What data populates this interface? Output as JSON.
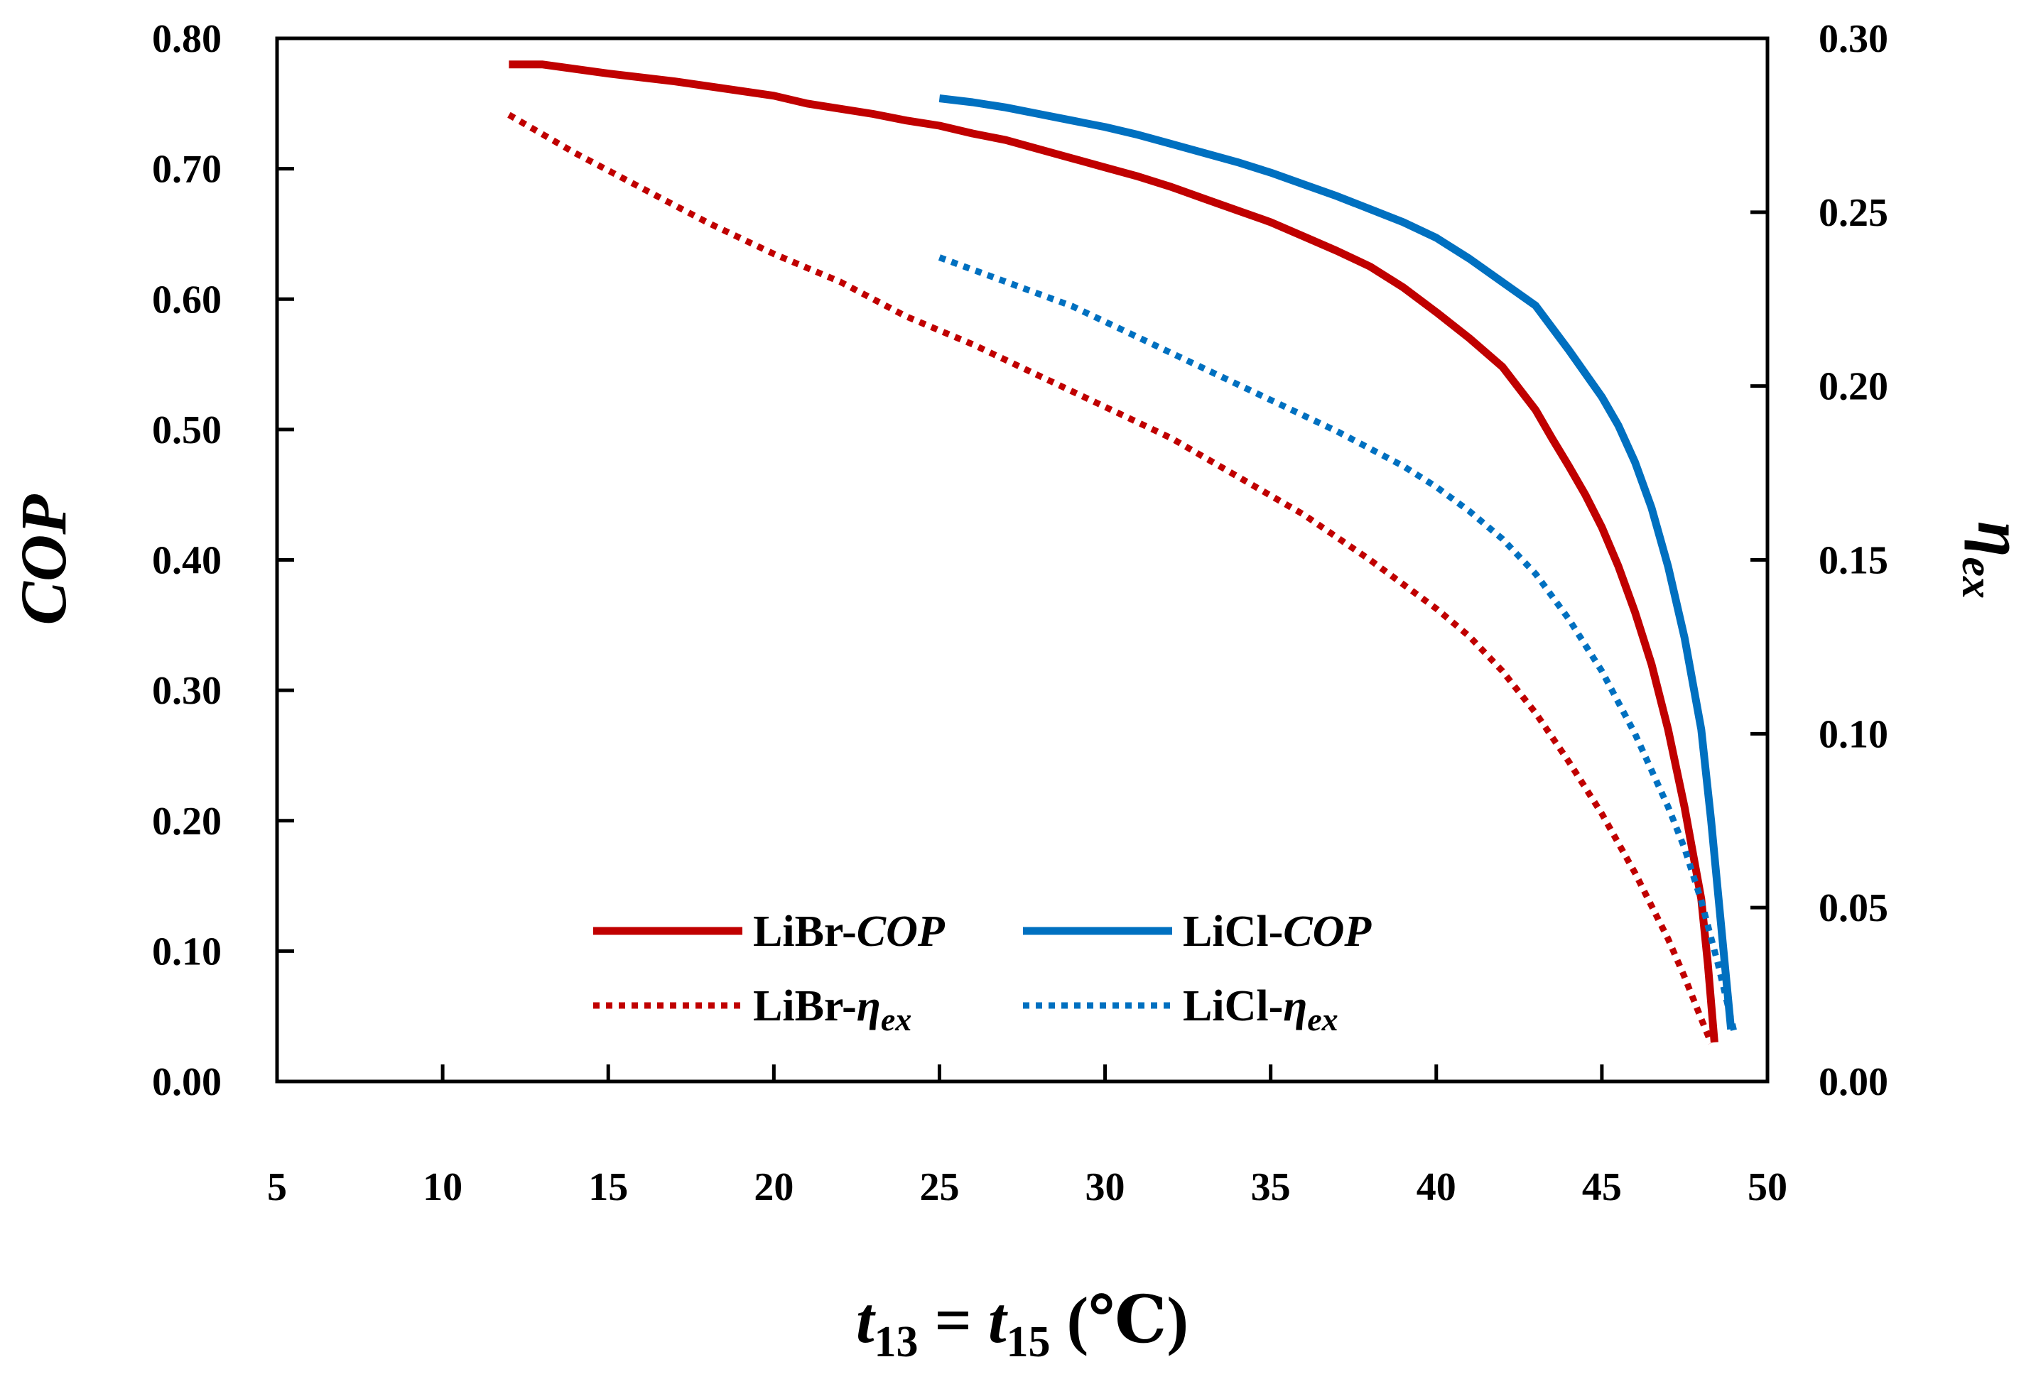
{
  "chart_data": {
    "type": "line",
    "xlabel": "t13 = t15 (℃)",
    "xlabel_parts": {
      "var1": "t",
      "sub1": "13",
      "eq": " = ",
      "var2": "t",
      "sub2": "15",
      "unit": " (℃)"
    },
    "ylabel": "COP",
    "y2label": "ηex",
    "y2label_parts": {
      "symbol": "η",
      "sub": "ex"
    },
    "xlim": [
      5,
      50
    ],
    "ylim": [
      0,
      0.8
    ],
    "y2lim": [
      0,
      0.3
    ],
    "x_ticks": [
      5,
      10,
      15,
      20,
      25,
      30,
      35,
      40,
      45,
      50
    ],
    "x_tick_labels": [
      "5",
      "10",
      "15",
      "20",
      "25",
      "30",
      "35",
      "40",
      "45",
      "50"
    ],
    "y_ticks": [
      0,
      0.1,
      0.2,
      0.3,
      0.4,
      0.5,
      0.6,
      0.7,
      0.8
    ],
    "y_tick_labels": [
      "0.00",
      "0.10",
      "0.20",
      "0.30",
      "0.40",
      "0.50",
      "0.60",
      "0.70",
      "0.80"
    ],
    "y2_ticks": [
      0,
      0.05,
      0.1,
      0.15,
      0.2,
      0.25,
      0.3
    ],
    "y2_tick_labels": [
      "0.00",
      "0.05",
      "0.10",
      "0.15",
      "0.20",
      "0.25",
      "0.30"
    ],
    "grid": false,
    "legend_position": "bottom-center",
    "series": [
      {
        "name": "LiBr-COP",
        "label_main": "LiBr-",
        "label_var": "COP",
        "label_sub": "",
        "axis": "left",
        "style": "solid",
        "color": "#C00000",
        "x": [
          12,
          13,
          15,
          17,
          20,
          21,
          23,
          24,
          25,
          26,
          27,
          28,
          29,
          30,
          31,
          32,
          33,
          34,
          35,
          36,
          37,
          38,
          39,
          40,
          41,
          42,
          43,
          43.5,
          44,
          44.5,
          45,
          45.5,
          46,
          46.5,
          47,
          47.5,
          48,
          48.2,
          48.4
        ],
        "y": [
          0.78,
          0.78,
          0.773,
          0.767,
          0.756,
          0.75,
          0.742,
          0.737,
          0.733,
          0.727,
          0.722,
          0.715,
          0.708,
          0.701,
          0.694,
          0.686,
          0.677,
          0.668,
          0.659,
          0.648,
          0.637,
          0.625,
          0.609,
          0.59,
          0.57,
          0.548,
          0.515,
          0.493,
          0.472,
          0.45,
          0.425,
          0.395,
          0.36,
          0.32,
          0.27,
          0.21,
          0.14,
          0.09,
          0.03
        ]
      },
      {
        "name": "LiCl-COP",
        "label_main": "LiCl-",
        "label_var": "COP",
        "label_sub": "",
        "axis": "left",
        "style": "solid",
        "color": "#0070C0",
        "x": [
          25,
          26,
          27,
          28,
          29,
          30,
          31,
          32,
          33,
          34,
          35,
          36,
          37,
          38,
          39,
          40,
          41,
          42,
          43,
          44,
          45,
          45.5,
          46,
          46.5,
          47,
          47.5,
          48,
          48.3,
          48.6,
          48.9
        ],
        "y": [
          0.754,
          0.751,
          0.747,
          0.742,
          0.737,
          0.732,
          0.726,
          0.719,
          0.712,
          0.705,
          0.697,
          0.688,
          0.679,
          0.669,
          0.659,
          0.647,
          0.631,
          0.613,
          0.595,
          0.561,
          0.525,
          0.503,
          0.475,
          0.44,
          0.395,
          0.34,
          0.27,
          0.2,
          0.12,
          0.04
        ]
      },
      {
        "name": "LiBr-ηex",
        "label_main": "LiBr-",
        "label_var": "η",
        "label_sub": "ex",
        "axis": "right",
        "style": "dotted",
        "color": "#C00000",
        "x": [
          12,
          14,
          16,
          18,
          20,
          22,
          24,
          25,
          26,
          28,
          30,
          32,
          34,
          36,
          38,
          40,
          41,
          42,
          43,
          44,
          45,
          46,
          47,
          47.5,
          48,
          48.3
        ],
        "y": [
          0.278,
          0.267,
          0.257,
          0.247,
          0.238,
          0.23,
          0.22,
          0.216,
          0.212,
          0.203,
          0.194,
          0.185,
          0.174,
          0.163,
          0.15,
          0.136,
          0.128,
          0.118,
          0.106,
          0.092,
          0.077,
          0.06,
          0.041,
          0.03,
          0.018,
          0.011
        ]
      },
      {
        "name": "LiCl-ηex",
        "label_main": "LiCl-",
        "label_var": "η",
        "label_sub": "ex",
        "axis": "right",
        "style": "dotted",
        "color": "#0070C0",
        "x": [
          25,
          27,
          29,
          31,
          33,
          35,
          37,
          39,
          40,
          41,
          42,
          43,
          44,
          45,
          46,
          47,
          47.5,
          48,
          48.5,
          49
        ],
        "y": [
          0.237,
          0.23,
          0.223,
          0.214,
          0.205,
          0.196,
          0.187,
          0.177,
          0.171,
          0.164,
          0.156,
          0.146,
          0.133,
          0.118,
          0.1,
          0.079,
          0.067,
          0.052,
          0.034,
          0.014
        ]
      }
    ]
  }
}
